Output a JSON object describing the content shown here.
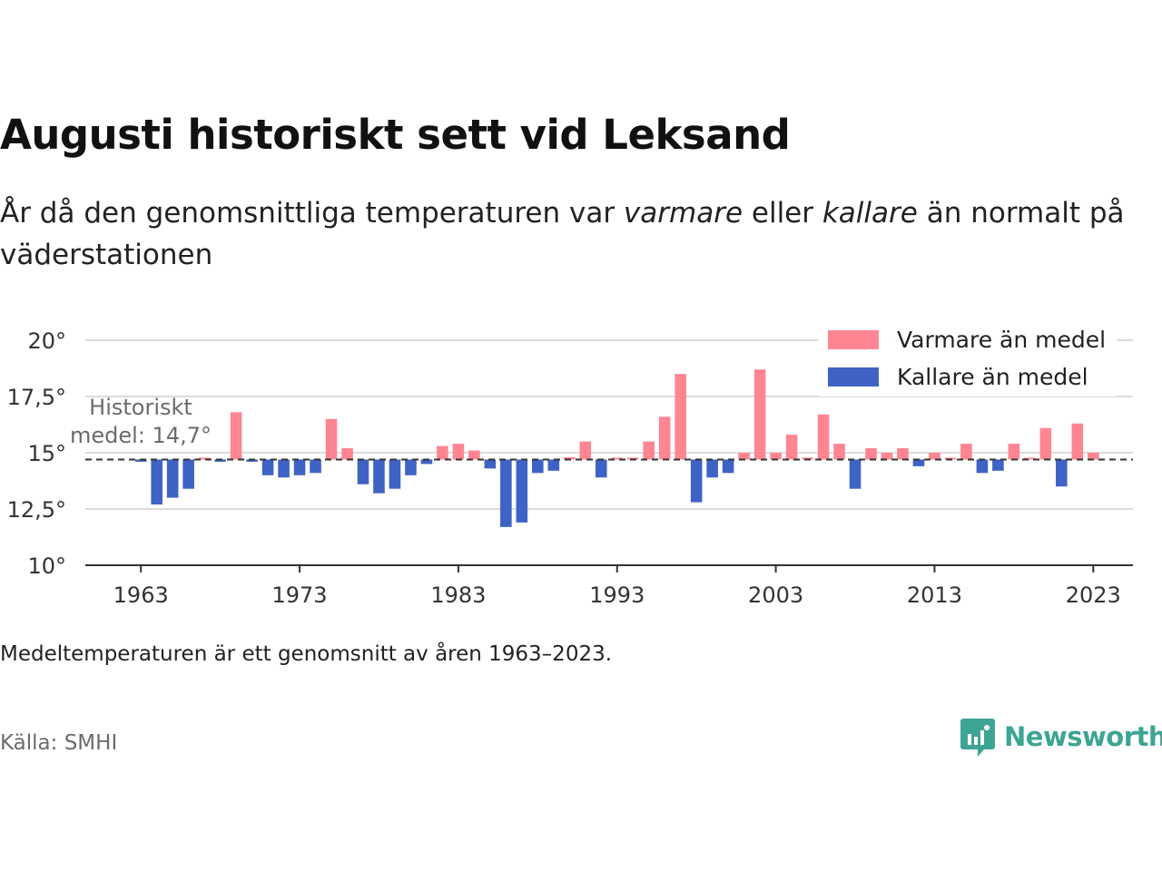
{
  "header": {
    "title": "Augusti historiskt sett vid Leksand",
    "subtitle_part1": "År då den genomsnittliga temperaturen var ",
    "subtitle_em1": "varmare",
    "subtitle_part2": " eller ",
    "subtitle_em2": "kallare",
    "subtitle_part3": " än normalt på väderstationen"
  },
  "footer": {
    "note": "Medeltemperaturen är ett genomsnitt av åren 1963–2023.",
    "source": "Källa: SMHI",
    "brand": "Newsworthy"
  },
  "colors": {
    "warmer": "#ff8593",
    "colder": "#3e63c4",
    "brand": "#3ea494"
  },
  "chart_data": {
    "type": "bar",
    "baseline": 14.7,
    "baseline_label_line1": "Historiskt",
    "baseline_label_line2": "medel: 14,7°",
    "ylim": [
      10,
      20
    ],
    "yticks": [
      10,
      12.5,
      15,
      17.5,
      20
    ],
    "ytick_labels": [
      "10°",
      "12,5°",
      "15°",
      "17,5°",
      "20°"
    ],
    "xlim": [
      1959.5,
      2025.5
    ],
    "xticks": [
      1963,
      1973,
      1983,
      1993,
      2003,
      2013,
      2023
    ],
    "xtick_labels": [
      "1963",
      "1973",
      "1983",
      "1993",
      "2003",
      "2013",
      "2023"
    ],
    "grid": true,
    "legend_position": "top-right",
    "legend": [
      {
        "name": "Varmare än medel",
        "color": "#ff8593"
      },
      {
        "name": "Kallare än medel",
        "color": "#3e63c4"
      }
    ],
    "years": [
      1963,
      1964,
      1965,
      1966,
      1967,
      1968,
      1969,
      1970,
      1971,
      1972,
      1973,
      1974,
      1975,
      1976,
      1977,
      1978,
      1979,
      1980,
      1981,
      1982,
      1983,
      1984,
      1985,
      1986,
      1987,
      1988,
      1989,
      1990,
      1991,
      1992,
      1993,
      1994,
      1995,
      1996,
      1997,
      1998,
      1999,
      2000,
      2001,
      2002,
      2003,
      2004,
      2005,
      2006,
      2007,
      2008,
      2009,
      2010,
      2011,
      2012,
      2013,
      2014,
      2015,
      2016,
      2017,
      2018,
      2019,
      2020,
      2021,
      2022,
      2023
    ],
    "values": [
      14.6,
      12.7,
      13.0,
      13.4,
      14.7,
      14.6,
      16.8,
      14.6,
      14.0,
      13.9,
      14.0,
      14.1,
      16.5,
      15.2,
      13.6,
      13.2,
      13.4,
      14.0,
      14.5,
      15.3,
      15.4,
      15.1,
      14.3,
      11.7,
      11.9,
      14.1,
      14.2,
      14.8,
      15.5,
      13.9,
      14.7,
      14.7,
      15.5,
      16.6,
      18.5,
      12.8,
      13.9,
      14.1,
      15.0,
      18.7,
      15.0,
      15.8,
      14.7,
      16.7,
      15.4,
      13.4,
      15.2,
      15.0,
      15.2,
      14.4,
      15.0,
      14.7,
      15.4,
      14.1,
      14.2,
      15.4,
      14.7,
      16.1,
      13.5,
      16.3,
      15.0
    ]
  }
}
